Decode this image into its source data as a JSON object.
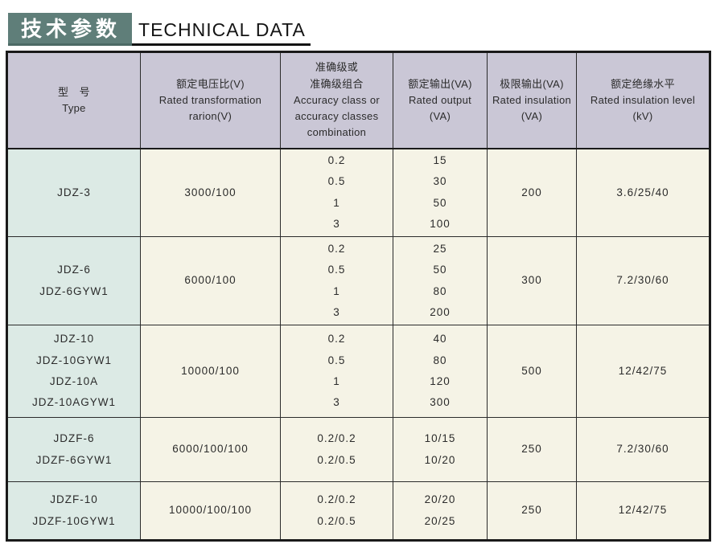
{
  "title": {
    "cn": "技术参数",
    "en": "TECHNICAL DATA"
  },
  "colors": {
    "title_bg": "#5f7e79",
    "header_bg": "#cac7d6",
    "type_col_bg": "#dceae5",
    "cell_bg": "#f5f3e6",
    "border": "#1a1a1a"
  },
  "table": {
    "headers": [
      "型　号\nType",
      "额定电压比(V)\nRated transformation\nrarion(V)",
      "准确级或\n准确级组合\nAccuracy class or\naccuracy classes\ncombination",
      "额定输出(VA)\nRated output\n(VA)",
      "极限输出(VA)\nRated insulation\n(VA)",
      "额定绝缘水平\nRated insulation level\n(kV)"
    ],
    "rows": [
      {
        "types": [
          "JDZ-3"
        ],
        "ratio": "3000/100",
        "accuracy": [
          "0.2",
          "0.5",
          "1",
          "3"
        ],
        "output": [
          "15",
          "30",
          "50",
          "100"
        ],
        "limit": "200",
        "insulation": "3.6/25/40"
      },
      {
        "types": [
          "JDZ-6",
          "JDZ-6GYW1"
        ],
        "ratio": "6000/100",
        "accuracy": [
          "0.2",
          "0.5",
          "1",
          "3"
        ],
        "output": [
          "25",
          "50",
          "80",
          "200"
        ],
        "limit": "300",
        "insulation": "7.2/30/60"
      },
      {
        "types": [
          "JDZ-10",
          "JDZ-10GYW1",
          "JDZ-10A",
          "JDZ-10AGYW1"
        ],
        "ratio": "10000/100",
        "accuracy": [
          "0.2",
          "0.5",
          "1",
          "3"
        ],
        "output": [
          "40",
          "80",
          "120",
          "300"
        ],
        "limit": "500",
        "insulation": "12/42/75"
      },
      {
        "types": [
          "JDZF-6",
          "JDZF-6GYW1"
        ],
        "ratio": "6000/100/100",
        "accuracy": [
          "0.2/0.2",
          "0.2/0.5"
        ],
        "output": [
          "10/15",
          "10/20"
        ],
        "limit": "250",
        "insulation": "7.2/30/60"
      },
      {
        "types": [
          "JDZF-10",
          "JDZF-10GYW1"
        ],
        "ratio": "10000/100/100",
        "accuracy": [
          "0.2/0.2",
          "0.2/0.5"
        ],
        "output": [
          "20/20",
          "20/25"
        ],
        "limit": "250",
        "insulation": "12/42/75"
      }
    ]
  }
}
